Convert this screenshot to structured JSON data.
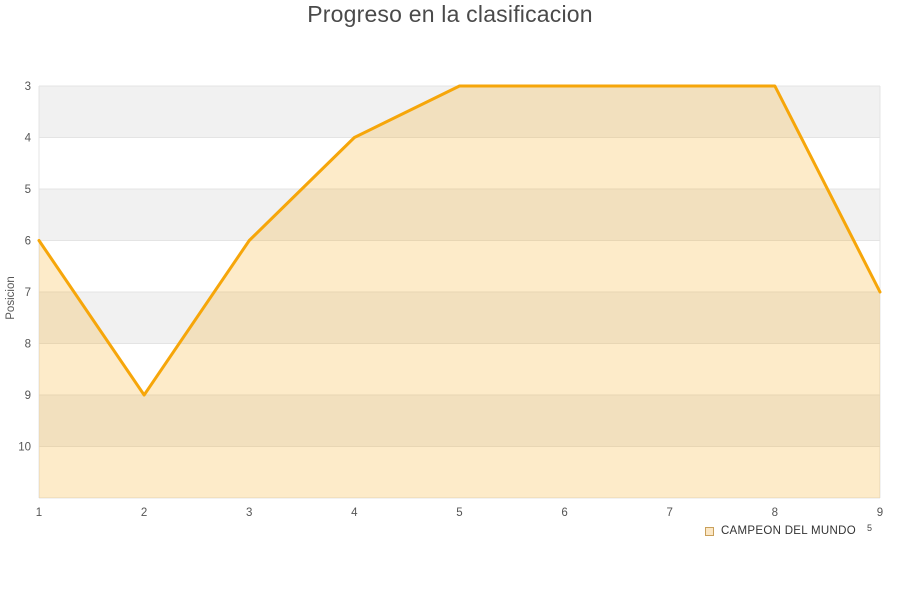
{
  "chart_data": {
    "type": "area",
    "title": "Progreso en la clasificacion",
    "xlabel": "",
    "ylabel": "Posicion",
    "x": [
      1,
      2,
      3,
      4,
      5,
      6,
      7,
      8,
      9
    ],
    "series": [
      {
        "name": "CAMPEON DEL MUNDO",
        "values": [
          6,
          9,
          6,
          4,
          3,
          3,
          3,
          3,
          7
        ]
      }
    ],
    "x_ticks": [
      "1",
      "2",
      "3",
      "4",
      "5",
      "6",
      "7",
      "8",
      "9"
    ],
    "y_ticks": [
      "3",
      "4",
      "5",
      "6",
      "7",
      "8",
      "9",
      "10"
    ],
    "y_range": [
      3,
      11
    ],
    "y_axis_inverted": true,
    "grid": true,
    "legend_position": "bottom-right",
    "colors": {
      "line": "#f6a60a",
      "fill": "rgba(246,166,10,0.22)",
      "band_gray": "#f1f1f1",
      "band_white": "#ffffff",
      "gridline": "#e4e4e4",
      "tick_text": "#555555",
      "axis_title_text": "#555555",
      "title_text": "#4a4a4a",
      "legend_text": "#333333"
    }
  },
  "legend": {
    "superscript": "5"
  }
}
